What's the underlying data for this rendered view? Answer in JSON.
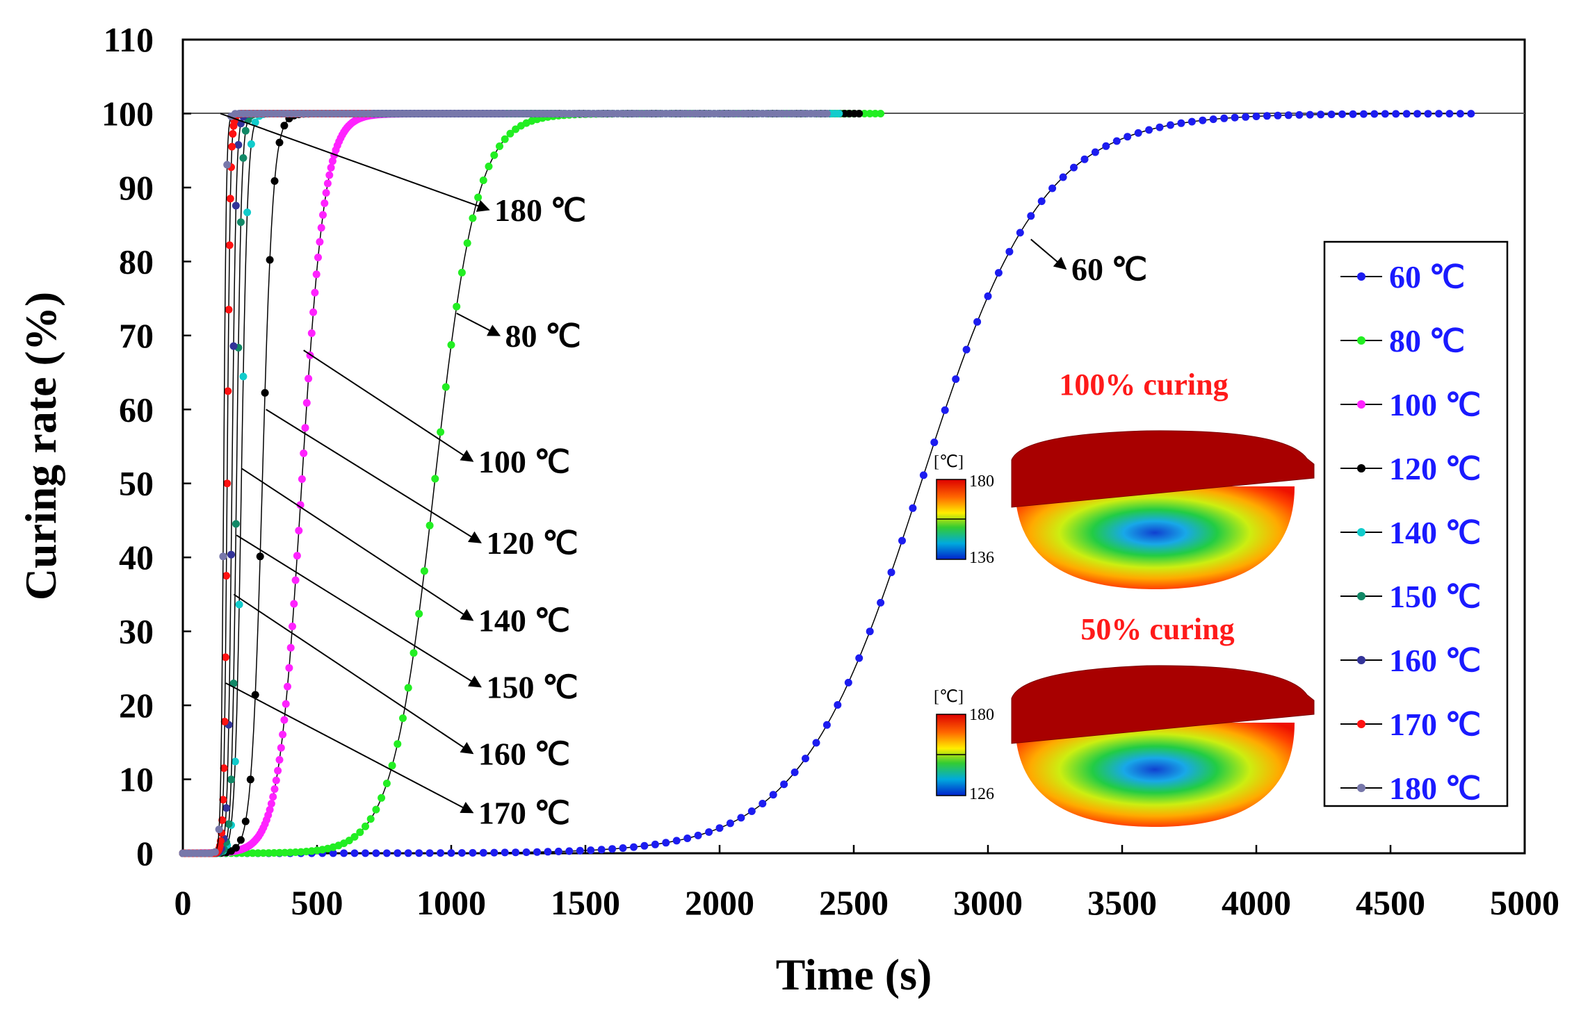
{
  "chart_data": {
    "type": "line",
    "xlabel": "Time (s)",
    "ylabel": "Curing rate (%)",
    "xlim": [
      0,
      5000
    ],
    "ylim": [
      0,
      110
    ],
    "xticks": [
      0,
      500,
      1000,
      1500,
      2000,
      2500,
      3000,
      3500,
      4000,
      4500,
      5000
    ],
    "yticks": [
      0,
      10,
      20,
      30,
      40,
      50,
      60,
      70,
      80,
      90,
      100,
      110
    ],
    "legend_position": "right",
    "series": [
      {
        "name": "60 ℃",
        "color": "#1c1cf0",
        "t50": 2750,
        "k": 0.00446,
        "tmax": 4800,
        "step": 20
      },
      {
        "name": "80 ℃",
        "color": "#22ee22",
        "t50": 938,
        "k": 0.0127,
        "tmax": 2600,
        "step": 10
      },
      {
        "name": "100 ℃",
        "color": "#ff22ff",
        "t50": 443,
        "k": 0.0233,
        "tmax": 1400,
        "step": 6
      },
      {
        "name": "120 ℃",
        "color": "#000000",
        "t50": 296,
        "k": 0.05,
        "tmax": 2520,
        "step": 6
      },
      {
        "name": "140 ℃",
        "color": "#11cccc",
        "t50": 218,
        "k": 0.085,
        "tmax": 2450,
        "step": 3
      },
      {
        "name": "150 ℃",
        "color": "#118866",
        "t50": 200,
        "k": 0.11,
        "tmax": 1400,
        "step": 3
      },
      {
        "name": "160 ℃",
        "color": "#333399",
        "t50": 183,
        "k": 0.13,
        "tmax": 1200,
        "step": 3
      },
      {
        "name": "170 ℃",
        "color": "#ff1111",
        "t50": 165,
        "k": 0.17,
        "tmax": 700,
        "step": 3
      },
      {
        "name": "180 ℃",
        "color": "#7777aa",
        "t50": 152,
        "k": 0.2,
        "tmax": 2400,
        "step": 3
      }
    ],
    "annotations": [
      {
        "text": "180 ℃",
        "from": [
          140,
          100
        ],
        "to": [
          1140,
          87
        ]
      },
      {
        "text": "80 ℃",
        "from": [
          1020,
          73
        ],
        "to": [
          1180,
          70
        ]
      },
      {
        "text": "100 ℃",
        "from": [
          450,
          68
        ],
        "to": [
          1080,
          53
        ]
      },
      {
        "text": "120 ℃",
        "from": [
          310,
          60
        ],
        "to": [
          1110,
          42
        ]
      },
      {
        "text": "140 ℃",
        "from": [
          220,
          52
        ],
        "to": [
          1080,
          31.5
        ]
      },
      {
        "text": "150 ℃",
        "from": [
          200,
          43
        ],
        "to": [
          1110,
          22.5
        ]
      },
      {
        "text": "160 ℃",
        "from": [
          190,
          35
        ],
        "to": [
          1080,
          13.5
        ]
      },
      {
        "text": "170 ℃",
        "from": [
          160,
          23
        ],
        "to": [
          1080,
          5.5
        ]
      },
      {
        "text": "60 ℃",
        "from": [
          3160,
          83
        ],
        "to": [
          3290,
          79
        ]
      }
    ],
    "insets": [
      {
        "title": "100% curing",
        "colorbar_unit": "[℃]",
        "colorbar_max": "180",
        "colorbar_min": "136"
      },
      {
        "title": "50% curing",
        "colorbar_unit": "[℃]",
        "colorbar_max": "180",
        "colorbar_min": "126"
      }
    ]
  }
}
